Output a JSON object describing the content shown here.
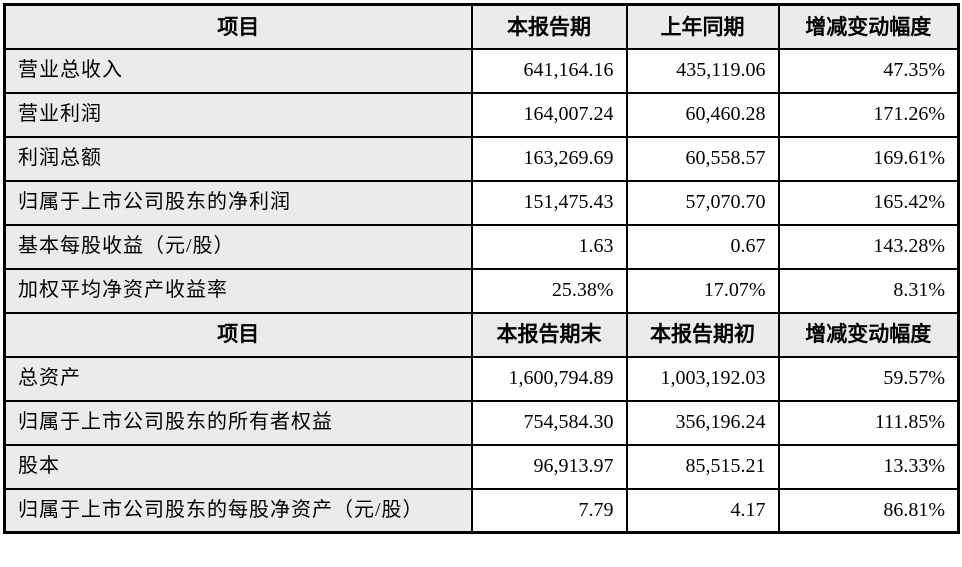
{
  "colors": {
    "header_bg": "#ebebeb",
    "label_column_bg": "#ebebeb",
    "value_cell_bg": "#ffffff",
    "border": "#000000",
    "text": "#000000"
  },
  "table": {
    "sections": [
      {
        "header": {
          "col1": "项目",
          "col2": "本报告期",
          "col3": "上年同期",
          "col4": "增减变动幅度"
        },
        "rows": [
          {
            "label": "营业总收入",
            "v1": "641,164.16",
            "v2": "435,119.06",
            "change": "47.35%"
          },
          {
            "label": "营业利润",
            "v1": "164,007.24",
            "v2": "60,460.28",
            "change": "171.26%"
          },
          {
            "label": "利润总额",
            "v1": "163,269.69",
            "v2": "60,558.57",
            "change": "169.61%"
          },
          {
            "label": "归属于上市公司股东的净利润",
            "v1": "151,475.43",
            "v2": "57,070.70",
            "change": "165.42%"
          },
          {
            "label": "基本每股收益（元/股）",
            "v1": "1.63",
            "v2": "0.67",
            "change": "143.28%"
          },
          {
            "label": "加权平均净资产收益率",
            "v1": "25.38%",
            "v2": "17.07%",
            "change": "8.31%"
          }
        ]
      },
      {
        "header": {
          "col1": "项目",
          "col2": "本报告期末",
          "col3": "本报告期初",
          "col4": "增减变动幅度"
        },
        "rows": [
          {
            "label": "总资产",
            "v1": "1,600,794.89",
            "v2": "1,003,192.03",
            "change": "59.57%"
          },
          {
            "label": "归属于上市公司股东的所有者权益",
            "v1": "754,584.30",
            "v2": "356,196.24",
            "change": "111.85%"
          },
          {
            "label": "股本",
            "v1": "96,913.97",
            "v2": "85,515.21",
            "change": "13.33%"
          },
          {
            "label": "归属于上市公司股东的每股净资产（元/股）",
            "v1": "7.79",
            "v2": "4.17",
            "change": "86.81%"
          }
        ]
      }
    ]
  }
}
